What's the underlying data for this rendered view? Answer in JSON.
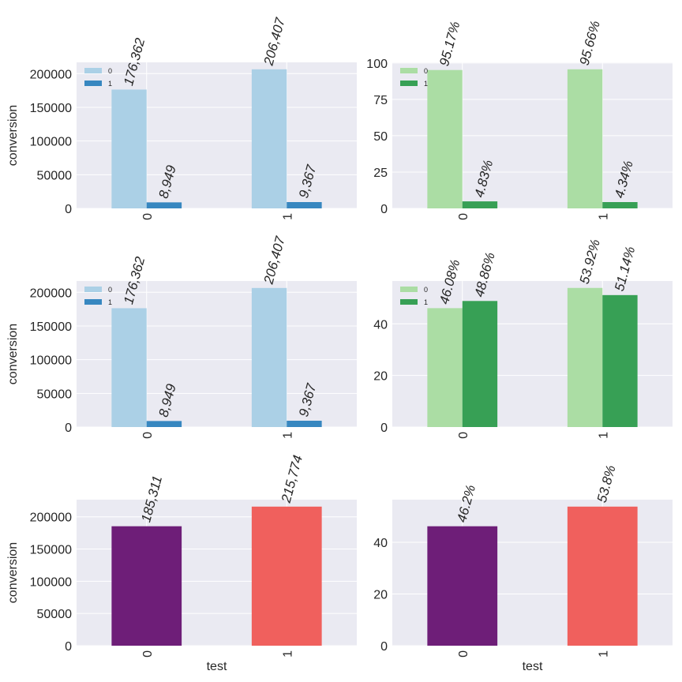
{
  "chart_data": [
    {
      "type": "bar",
      "ylabel": "conversion",
      "categories": [
        "0",
        "1"
      ],
      "series": [
        {
          "name": "0",
          "color": "#abd0e6",
          "values": [
            176362,
            206407
          ],
          "value_labels": [
            "176,362",
            "206,407"
          ]
        },
        {
          "name": "1",
          "color": "#3787c0",
          "values": [
            8949,
            9367
          ],
          "value_labels": [
            "8,949",
            "9,367"
          ]
        }
      ],
      "ylim": [
        0,
        216727
      ],
      "yticks": [
        0,
        50000,
        100000,
        150000,
        200000
      ],
      "grid": true,
      "legend": "upper left"
    },
    {
      "type": "bar",
      "categories": [
        "0",
        "1"
      ],
      "series": [
        {
          "name": "0",
          "color": "#abdda4",
          "values": [
            95.17,
            95.66
          ],
          "value_labels": [
            "95.17%",
            "95.66%"
          ]
        },
        {
          "name": "1",
          "color": "#37a055",
          "values": [
            4.83,
            4.34
          ],
          "value_labels": [
            "4.83%",
            "4.34%"
          ]
        }
      ],
      "ylim": [
        0,
        100.44
      ],
      "yticks": [
        0,
        25,
        50,
        75,
        100
      ],
      "grid": true,
      "legend": "upper left"
    },
    {
      "type": "bar",
      "ylabel": "conversion",
      "categories": [
        "0",
        "1"
      ],
      "series": [
        {
          "name": "0",
          "color": "#abd0e6",
          "values": [
            176362,
            206407
          ],
          "value_labels": [
            "176,362",
            "206,407"
          ]
        },
        {
          "name": "1",
          "color": "#3787c0",
          "values": [
            8949,
            9367
          ],
          "value_labels": [
            "8,949",
            "9,367"
          ]
        }
      ],
      "ylim": [
        0,
        216727
      ],
      "yticks": [
        0,
        50000,
        100000,
        150000,
        200000
      ],
      "grid": true,
      "legend": "upper left"
    },
    {
      "type": "bar",
      "categories": [
        "0",
        "1"
      ],
      "series": [
        {
          "name": "0",
          "color": "#abdda4",
          "values": [
            46.08,
            53.92
          ],
          "value_labels": [
            "46.08%",
            "53.92%"
          ]
        },
        {
          "name": "1",
          "color": "#37a055",
          "values": [
            48.86,
            51.14
          ],
          "value_labels": [
            "48.86%",
            "51.14%"
          ]
        }
      ],
      "ylim": [
        0,
        56.6
      ],
      "yticks": [
        0,
        20,
        40
      ],
      "grid": true,
      "legend": "upper left"
    },
    {
      "type": "bar",
      "ylabel": "conversion",
      "xlabel": "test",
      "categories": [
        "0",
        "1"
      ],
      "values": [
        185311,
        215774
      ],
      "value_labels": [
        "185,311",
        "215,774"
      ],
      "colors": [
        "#6e1e78",
        "#f0605d"
      ],
      "ylim": [
        0,
        226563
      ],
      "yticks": [
        0,
        50000,
        100000,
        150000,
        200000
      ],
      "grid": true
    },
    {
      "type": "bar",
      "xlabel": "test",
      "categories": [
        "0",
        "1"
      ],
      "values": [
        46.2,
        53.8
      ],
      "value_labels": [
        "46.2%",
        "53.8%"
      ],
      "colors": [
        "#6e1e78",
        "#f0605d"
      ],
      "ylim": [
        0,
        56.49
      ],
      "yticks": [
        0,
        20,
        40
      ],
      "grid": true
    }
  ]
}
